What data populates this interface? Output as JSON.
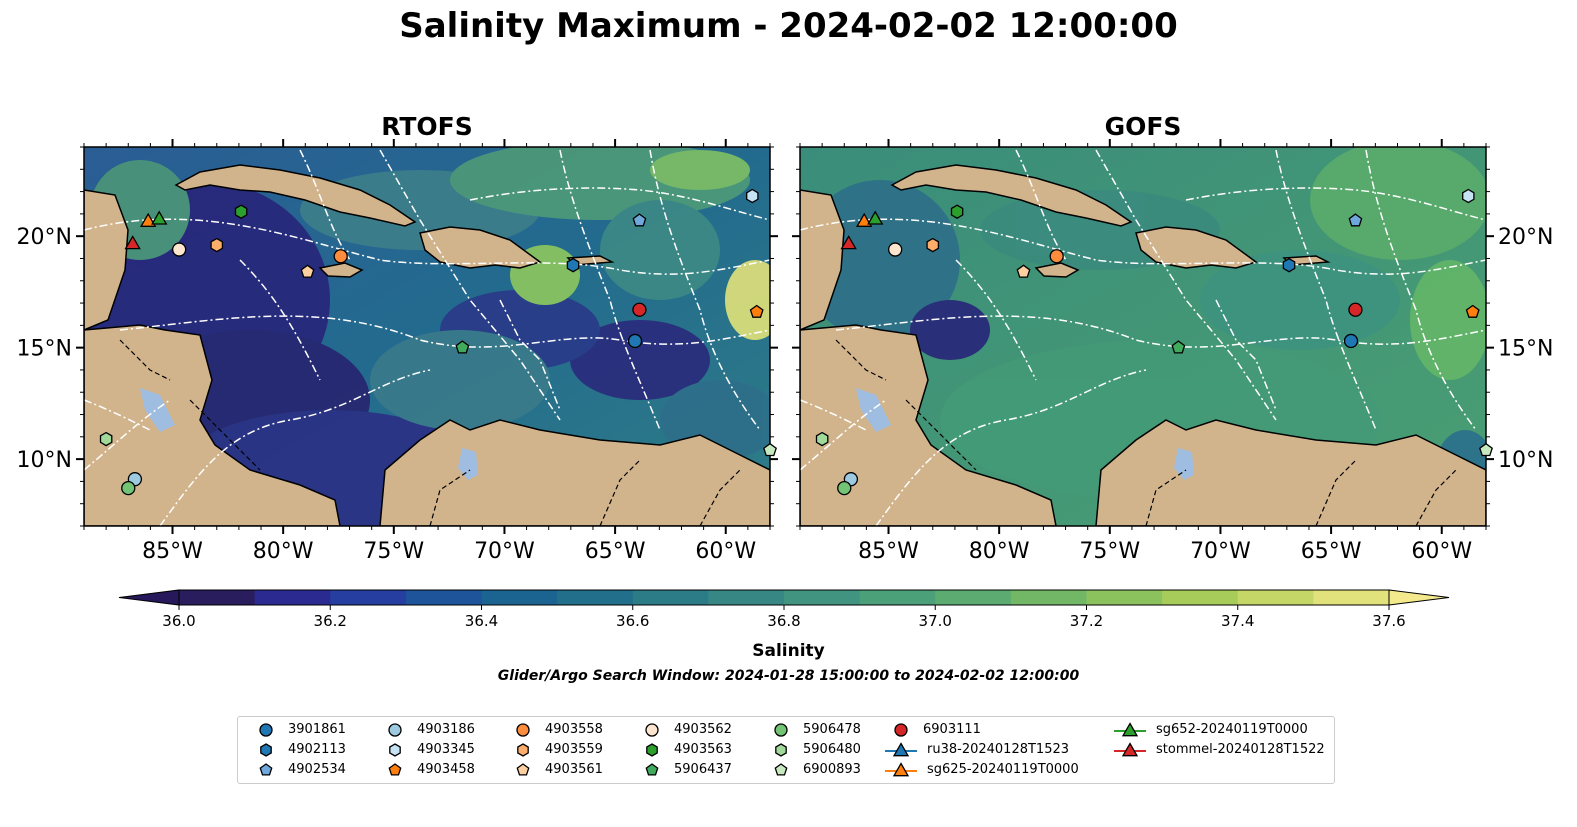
{
  "figure": {
    "title": "Salinity Maximum - 2024-02-02 12:00:00",
    "search_window": "Glider/Argo Search Window: 2024-01-28 15:00:00 to 2024-02-02 12:00:00"
  },
  "panels": [
    {
      "title": "RTOFS",
      "model": "rtofs"
    },
    {
      "title": "GOFS",
      "model": "gofs"
    }
  ],
  "map": {
    "lon_range": [
      -89,
      -58
    ],
    "lat_range": [
      7,
      24
    ],
    "lon_ticks": [
      -85,
      -80,
      -75,
      -70,
      -65,
      -60
    ],
    "lon_tick_labels": [
      "85°W",
      "80°W",
      "75°W",
      "70°W",
      "65°W",
      "60°W"
    ],
    "lat_ticks": [
      10,
      15,
      20
    ],
    "lat_tick_labels": [
      "10°N",
      "15°N",
      "20°N"
    ],
    "land_color": "#d2b48c",
    "lake_color": "#9ebde0"
  },
  "colorbar": {
    "label": "Salinity",
    "min": 36.0,
    "max": 37.6,
    "step": 0.1,
    "ticks": [
      36.0,
      36.2,
      36.4,
      36.6,
      36.8,
      37.0,
      37.2,
      37.4,
      37.6
    ],
    "tick_labels": [
      "36.0",
      "36.2",
      "36.4",
      "36.6",
      "36.8",
      "37.0",
      "37.2",
      "37.4",
      "37.6"
    ],
    "extend": "both",
    "colormap": "haline"
  },
  "legend": {
    "items": [
      {
        "label": "3901861",
        "marker": "circle",
        "color": "#1f77b4"
      },
      {
        "label": "4902113",
        "marker": "hexagon",
        "color": "#1f77b4"
      },
      {
        "label": "4902534",
        "marker": "pentagon",
        "color": "#6ea8dc"
      },
      {
        "label": "4903186",
        "marker": "circle",
        "color": "#9ecae1"
      },
      {
        "label": "4903345",
        "marker": "hexagon",
        "color": "#c6e2f5"
      },
      {
        "label": "4903458",
        "marker": "pentagon",
        "color": "#ff7f0e"
      },
      {
        "label": "4903558",
        "marker": "circle",
        "color": "#fd8d3c"
      },
      {
        "label": "4903559",
        "marker": "hexagon",
        "color": "#fdae6b"
      },
      {
        "label": "4903561",
        "marker": "pentagon",
        "color": "#fdd0a2"
      },
      {
        "label": "4903562",
        "marker": "circle",
        "color": "#fee6ce"
      },
      {
        "label": "4903563",
        "marker": "hexagon",
        "color": "#2ca02c"
      },
      {
        "label": "5906437",
        "marker": "pentagon",
        "color": "#41ab5d"
      },
      {
        "label": "5906478",
        "marker": "circle",
        "color": "#74c476"
      },
      {
        "label": "5906480",
        "marker": "hexagon",
        "color": "#a1d99b"
      },
      {
        "label": "6900893",
        "marker": "pentagon",
        "color": "#c7e9c0"
      },
      {
        "label": "6903111",
        "marker": "circle",
        "color": "#d62728"
      },
      {
        "label": "ru38-20240128T1523",
        "marker": "triangle-line",
        "color": "#1f77b4"
      },
      {
        "label": "sg625-20240119T0000",
        "marker": "triangle-line",
        "color": "#ff7f0e"
      },
      {
        "label": "sg652-20240119T0000",
        "marker": "triangle-line",
        "color": "#2ca02c"
      },
      {
        "label": "stommel-20240128T1522",
        "marker": "triangle-line",
        "color": "#d62728"
      }
    ]
  },
  "observations": [
    {
      "id": "3901861",
      "lon": -64.1,
      "lat": 15.3
    },
    {
      "id": "4902113",
      "lon": -66.9,
      "lat": 18.7
    },
    {
      "id": "4902534",
      "lon": -63.9,
      "lat": 20.7
    },
    {
      "id": "4903186",
      "lon": -86.7,
      "lat": 9.1
    },
    {
      "id": "4903345",
      "lon": -58.8,
      "lat": 21.8
    },
    {
      "id": "4903458",
      "lon": -58.6,
      "lat": 16.6
    },
    {
      "id": "4903558",
      "lon": -77.4,
      "lat": 19.1
    },
    {
      "id": "4903559",
      "lon": -83.0,
      "lat": 19.6
    },
    {
      "id": "4903561",
      "lon": -78.9,
      "lat": 18.4
    },
    {
      "id": "4903562",
      "lon": -84.7,
      "lat": 19.4
    },
    {
      "id": "4903563",
      "lon": -81.9,
      "lat": 21.1
    },
    {
      "id": "5906437",
      "lon": -71.9,
      "lat": 15.0
    },
    {
      "id": "5906478",
      "lon": -87.0,
      "lat": 8.7
    },
    {
      "id": "5906480",
      "lon": -88.0,
      "lat": 10.9
    },
    {
      "id": "6900893",
      "lon": -58.0,
      "lat": 10.4
    },
    {
      "id": "6903111",
      "lon": -63.9,
      "lat": 16.7
    },
    {
      "id": "sg625-20240119T0000",
      "lon": -86.1,
      "lat": 20.7
    },
    {
      "id": "sg652-20240119T0000",
      "lon": -85.6,
      "lat": 20.8
    },
    {
      "id": "stommel-20240128T1522",
      "lon": -86.8,
      "lat": 19.7
    }
  ]
}
